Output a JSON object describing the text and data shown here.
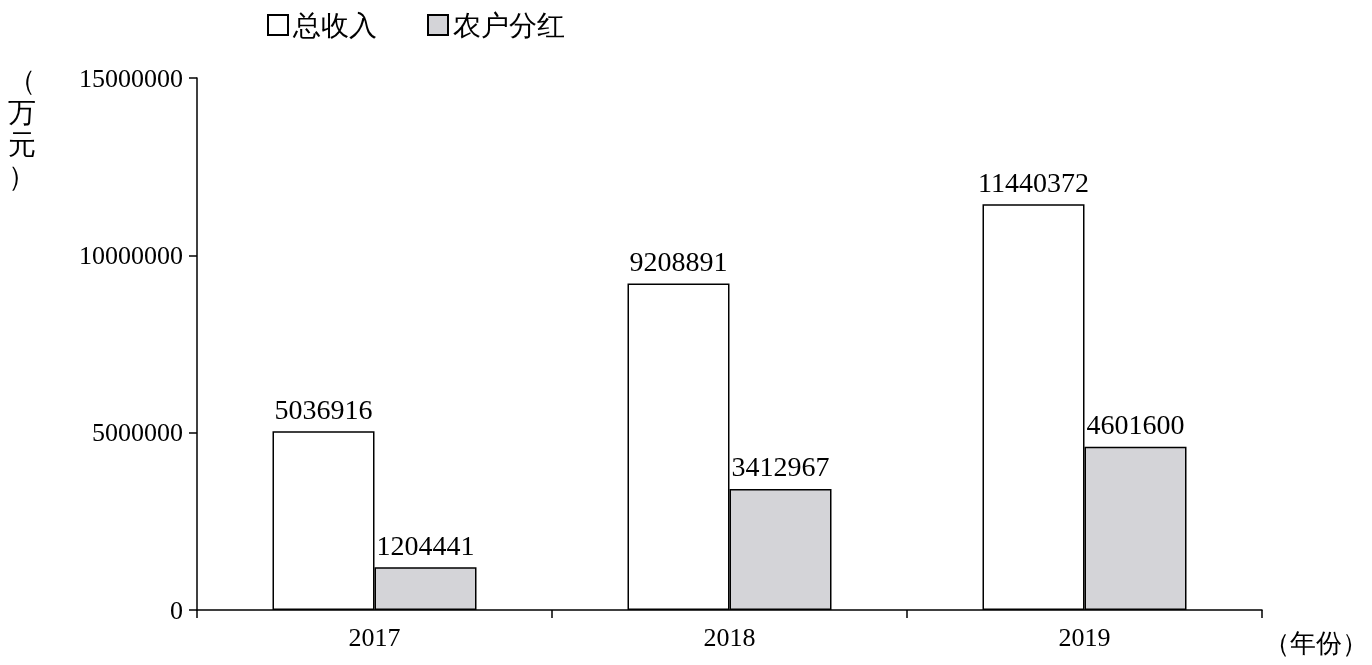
{
  "chart_data": {
    "type": "bar",
    "categories": [
      "2017",
      "2018",
      "2019"
    ],
    "series": [
      {
        "name": "总收入",
        "color": "#ffffff",
        "values": [
          5036916,
          9208891,
          11440372
        ]
      },
      {
        "name": "农户分红",
        "color": "#d4d4d8",
        "values": [
          1204441,
          3412967,
          4601600
        ]
      }
    ],
    "ylabel": "（万元）",
    "xlabel": "（年份）",
    "ylim": [
      0,
      15000000
    ],
    "yticks": [
      0,
      5000000,
      10000000,
      15000000
    ],
    "data_labels": true,
    "legend": "top",
    "grid": false
  }
}
